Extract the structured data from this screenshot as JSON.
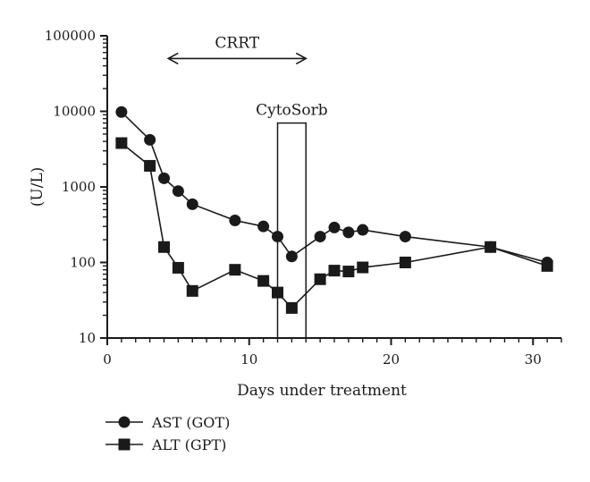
{
  "chart_data": {
    "type": "line",
    "title": "",
    "xlabel": "Days under treatment",
    "ylabel": "(U/L)",
    "x_scale": "linear",
    "y_scale": "log",
    "xlim": [
      0,
      32
    ],
    "ylim": [
      10,
      100000
    ],
    "x_ticks": [
      "0",
      "10",
      "20",
      "30"
    ],
    "y_ticks": [
      "10",
      "100",
      "1000",
      "10000",
      "100000"
    ],
    "grid": false,
    "legend_position": "bottom-left",
    "series": [
      {
        "name": "AST (GOT)",
        "marker": "circle",
        "x": [
          1,
          3,
          4,
          5,
          6,
          9,
          11,
          12,
          13,
          15,
          16,
          17,
          18,
          21,
          27,
          31
        ],
        "y": [
          9800,
          4200,
          1300,
          880,
          590,
          360,
          300,
          220,
          120,
          220,
          290,
          250,
          270,
          220,
          160,
          100
        ]
      },
      {
        "name": "ALT (GPT)",
        "marker": "square",
        "x": [
          1,
          3,
          4,
          5,
          6,
          9,
          11,
          12,
          13,
          15,
          16,
          17,
          18,
          21,
          27,
          31
        ],
        "y": [
          3800,
          1900,
          160,
          85,
          42,
          80,
          57,
          40,
          25,
          60,
          78,
          76,
          86,
          100,
          160,
          90
        ]
      }
    ],
    "annotations": [
      {
        "label": "CRRT",
        "kind": "double-arrow",
        "x_start": 4.3,
        "x_end": 14,
        "y": 50000
      },
      {
        "label": "CytoSorb",
        "kind": "box",
        "x_start": 12,
        "x_end": 14,
        "y_top": 7000
      }
    ]
  },
  "colors": {
    "line": "#1a1a1a",
    "background": "#ffffff"
  }
}
